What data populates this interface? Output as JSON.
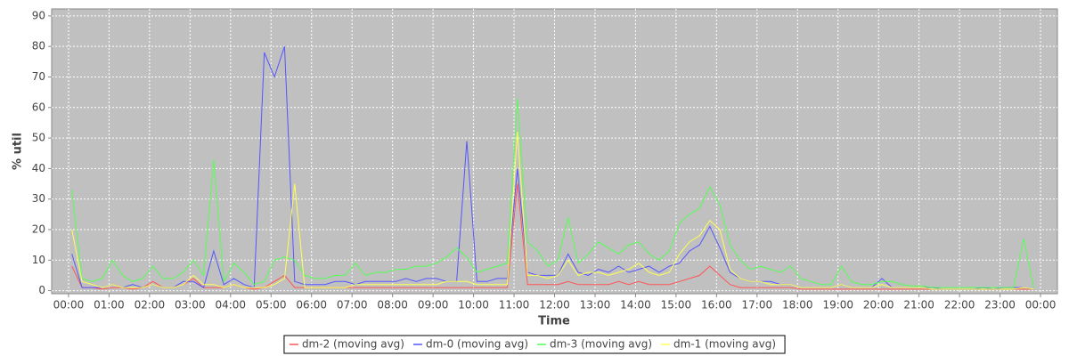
{
  "chart_data": {
    "type": "line",
    "x_label": "Time",
    "y_label": "% util",
    "xlim": [
      -25,
      1465
    ],
    "ylim": [
      -1,
      92.3
    ],
    "xticks": [
      {
        "value": 0,
        "label": "00:00"
      },
      {
        "value": 60,
        "label": "01:00"
      },
      {
        "value": 120,
        "label": "02:00"
      },
      {
        "value": 180,
        "label": "03:00"
      },
      {
        "value": 240,
        "label": "04:00"
      },
      {
        "value": 300,
        "label": "05:00"
      },
      {
        "value": 360,
        "label": "06:00"
      },
      {
        "value": 420,
        "label": "07:00"
      },
      {
        "value": 480,
        "label": "08:00"
      },
      {
        "value": 540,
        "label": "09:00"
      },
      {
        "value": 600,
        "label": "10:00"
      },
      {
        "value": 660,
        "label": "11:00"
      },
      {
        "value": 720,
        "label": "12:00"
      },
      {
        "value": 780,
        "label": "13:00"
      },
      {
        "value": 840,
        "label": "14:00"
      },
      {
        "value": 900,
        "label": "15:00"
      },
      {
        "value": 960,
        "label": "16:00"
      },
      {
        "value": 1020,
        "label": "17:00"
      },
      {
        "value": 1080,
        "label": "18:00"
      },
      {
        "value": 1140,
        "label": "19:00"
      },
      {
        "value": 1200,
        "label": "20:00"
      },
      {
        "value": 1260,
        "label": "21:00"
      },
      {
        "value": 1320,
        "label": "22:00"
      },
      {
        "value": 1380,
        "label": "23:00"
      },
      {
        "value": 1440,
        "label": "00:00"
      }
    ],
    "yticks": [
      0,
      10,
      20,
      30,
      40,
      50,
      60,
      70,
      80,
      90
    ],
    "grid": true,
    "x": [
      5,
      20,
      35,
      50,
      65,
      80,
      95,
      110,
      125,
      140,
      155,
      170,
      185,
      200,
      215,
      230,
      245,
      260,
      275,
      290,
      305,
      320,
      335,
      350,
      365,
      380,
      395,
      410,
      425,
      440,
      455,
      470,
      485,
      500,
      515,
      530,
      545,
      560,
      575,
      590,
      605,
      620,
      635,
      650,
      665,
      680,
      695,
      710,
      725,
      740,
      755,
      770,
      785,
      800,
      815,
      830,
      845,
      860,
      875,
      890,
      905,
      920,
      935,
      950,
      965,
      980,
      995,
      1010,
      1025,
      1040,
      1055,
      1070,
      1085,
      1100,
      1115,
      1130,
      1145,
      1160,
      1175,
      1190,
      1205,
      1220,
      1235,
      1250,
      1265,
      1280,
      1295,
      1310,
      1325,
      1340,
      1355,
      1370,
      1385,
      1400,
      1415,
      1430
    ],
    "series": [
      {
        "name": "dm-2 (moving avg)",
        "color": "#ff5555",
        "values": [
          8,
          1,
          1,
          0.5,
          1,
          1,
          0.5,
          1,
          3,
          1,
          1,
          2,
          4,
          1,
          1,
          1,
          2,
          1,
          0.5,
          1,
          3,
          5,
          1,
          1,
          1,
          1,
          1,
          1,
          1,
          1,
          1,
          1,
          1,
          1,
          1,
          1,
          1,
          1,
          1,
          1,
          1,
          1,
          1,
          1,
          35,
          2,
          2,
          2,
          2,
          3,
          2,
          2,
          2,
          2,
          3,
          2,
          3,
          2,
          2,
          2,
          3,
          4,
          5,
          8,
          5,
          2,
          1,
          1,
          1,
          1,
          1,
          1,
          0.5,
          0.5,
          0.5,
          0.5,
          0.5,
          0.5,
          0.5,
          0.5,
          0.5,
          0.5,
          0.5,
          0.5,
          0.5,
          0.5,
          0.5,
          0.5,
          0.5,
          0.5,
          0.5,
          0.5,
          0.5,
          0.5,
          0.5,
          0.5
        ]
      },
      {
        "name": "dm-0 (moving avg)",
        "color": "#5555ff",
        "values": [
          12,
          1,
          1,
          1,
          2,
          1,
          2,
          1,
          2,
          1,
          1,
          3,
          3,
          1,
          13,
          2,
          4,
          2,
          1,
          78,
          70,
          80,
          3,
          2,
          2,
          2,
          3,
          3,
          2,
          3,
          3,
          3,
          3,
          4,
          3,
          4,
          4,
          3,
          3,
          49,
          3,
          3,
          4,
          4,
          40,
          6,
          5,
          5,
          5,
          12,
          6,
          5,
          7,
          6,
          8,
          6,
          7,
          8,
          6,
          8,
          9,
          13,
          15,
          21,
          14,
          6,
          4,
          3,
          3,
          3,
          2,
          2,
          1,
          1,
          1,
          1,
          2,
          1,
          1,
          1,
          4,
          1,
          1,
          1,
          1,
          1,
          0.5,
          0.5,
          0.5,
          0.5,
          1,
          0.5,
          1,
          1,
          1,
          0.5
        ]
      },
      {
        "name": "dm-3 (moving avg)",
        "color": "#55ff55",
        "values": [
          33,
          4,
          3,
          4,
          10,
          5,
          3,
          4,
          8,
          4,
          4,
          6,
          10,
          5,
          43,
          3,
          9,
          6,
          2,
          3,
          10,
          11,
          10,
          5,
          4,
          4,
          5,
          5,
          9,
          5,
          6,
          6,
          7,
          7,
          8,
          8,
          9,
          11,
          14,
          11,
          6,
          7,
          8,
          9,
          63,
          16,
          13,
          8,
          10,
          24,
          9,
          12,
          16,
          14,
          12,
          15,
          16,
          12,
          10,
          13,
          22,
          25,
          27,
          34,
          28,
          15,
          10,
          7,
          8,
          7,
          6,
          8,
          4,
          3,
          2,
          2,
          8,
          3,
          2,
          2,
          3,
          3,
          2,
          1.5,
          1.5,
          1,
          1,
          1,
          1,
          1,
          1,
          1,
          1,
          1,
          17,
          1
        ]
      },
      {
        "name": "dm-1 (moving avg)",
        "color": "#ffff55",
        "values": [
          20,
          3,
          2,
          1,
          2,
          1,
          1,
          1,
          2,
          1,
          1,
          2,
          5,
          2,
          2,
          1,
          2,
          1,
          1,
          1,
          2,
          4,
          35,
          1,
          1,
          1,
          1,
          1,
          2,
          2,
          2,
          2,
          2,
          2,
          2,
          2,
          2,
          3,
          3,
          3,
          2,
          2,
          2,
          2,
          52,
          5,
          5,
          4,
          5,
          10,
          5,
          6,
          6,
          5,
          6,
          7,
          9,
          6,
          5,
          6,
          12,
          16,
          18,
          23,
          20,
          7,
          4,
          3,
          3,
          2,
          2,
          2,
          1,
          1,
          1,
          1,
          2,
          1,
          1,
          1,
          2,
          1,
          1,
          1,
          1,
          0.5,
          0.5,
          0.5,
          0.5,
          0.5,
          0.5,
          0.5,
          0.5,
          0.5,
          1,
          0.5
        ]
      }
    ]
  }
}
